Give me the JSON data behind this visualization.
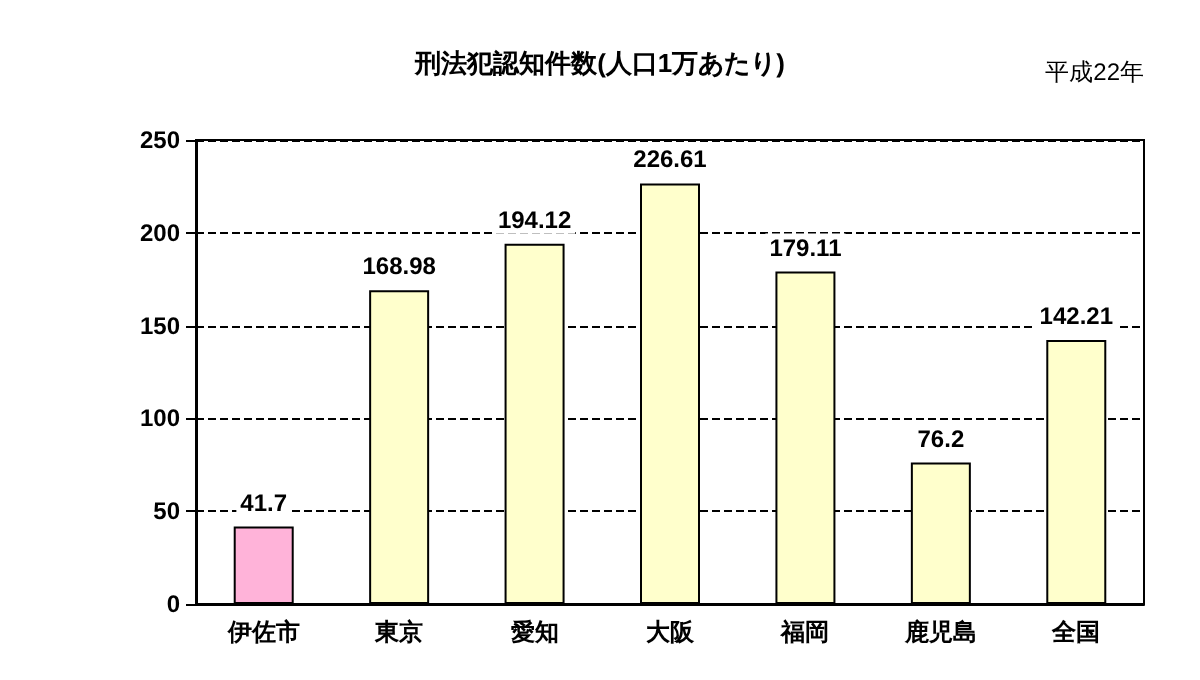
{
  "chart_data": {
    "type": "bar",
    "title": "刑法犯認知件数(人口1万あたり)",
    "annotations": [
      "平成22年"
    ],
    "categories": [
      "伊佐市",
      "東京",
      "愛知",
      "大阪",
      "福岡",
      "鹿児島",
      "全国"
    ],
    "values": [
      41.7,
      168.98,
      194.12,
      226.61,
      179.11,
      76.2,
      142.21
    ],
    "colors": [
      "#ffb3d9",
      "#ffffcc",
      "#ffffcc",
      "#ffffcc",
      "#ffffcc",
      "#ffffcc",
      "#ffffcc"
    ],
    "ylim": [
      0,
      250
    ],
    "yticks": [
      0,
      50,
      100,
      150,
      200,
      250
    ],
    "grid": "y",
    "data_labels": true
  }
}
